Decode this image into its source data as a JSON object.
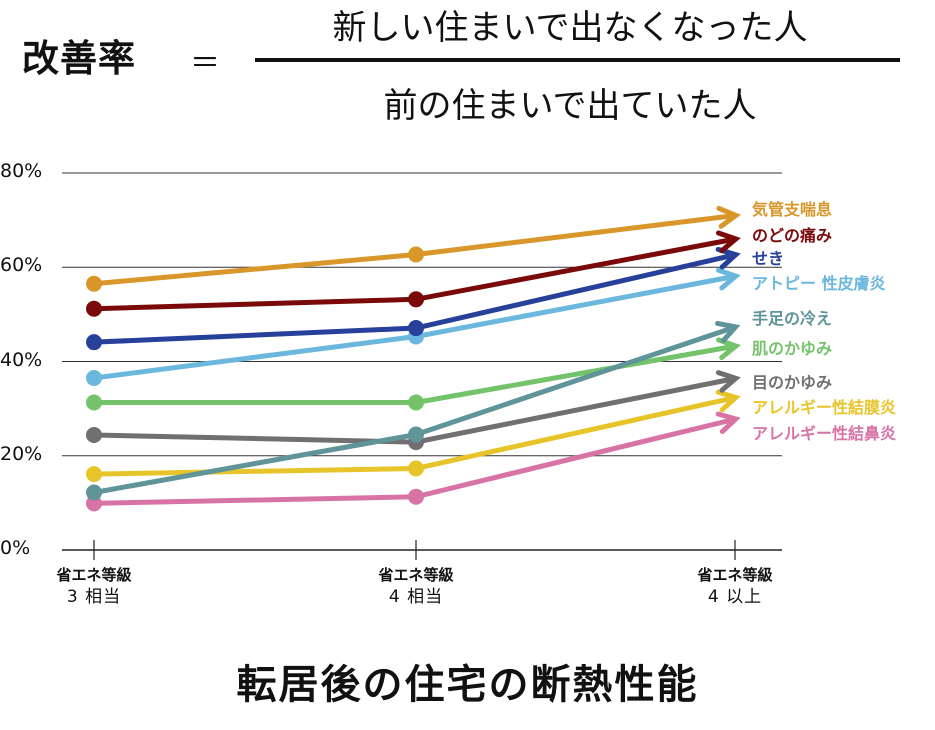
{
  "formula": {
    "lhs": "改善率",
    "equals": "＝",
    "numerator": "新しい住まいで出なくなった人",
    "denominator": "前の住まいで出ていた人"
  },
  "chart_data": {
    "type": "line",
    "title": "",
    "xlabel": "転居後の住宅の断熱性能",
    "ylabel": "",
    "ylim": [
      0,
      80
    ],
    "yticks": [
      "0%",
      "20%",
      "40%",
      "60%",
      "80%"
    ],
    "ytick_values": [
      0,
      20,
      40,
      60,
      80
    ],
    "grid": true,
    "legend": "right-end labels",
    "categories": [
      {
        "line1": "省エネ等級",
        "line2": "3 相当"
      },
      {
        "line1": "省エネ等級",
        "line2": "4 相当"
      },
      {
        "line1": "省エネ等級",
        "line2": "4 以上"
      }
    ],
    "series": [
      {
        "name": "気管支喘息",
        "color": "#d9962a",
        "values": [
          56.5,
          62.7,
          70.8
        ]
      },
      {
        "name": "のどの痛み",
        "color": "#7a0a0a",
        "values": [
          51.2,
          53.2,
          65.7
        ]
      },
      {
        "name": "せき",
        "color": "#27409a",
        "values": [
          44.1,
          47.1,
          62.3
        ]
      },
      {
        "name": "アトピー 性皮膚炎",
        "color": "#6bb7de",
        "values": [
          36.5,
          45.3,
          57.8
        ]
      },
      {
        "name": "手足の冷え",
        "color": "#5f9498",
        "values": [
          12.2,
          24.5,
          46.8
        ]
      },
      {
        "name": "肌のかゆみ",
        "color": "#74c36b",
        "values": [
          31.3,
          31.3,
          43.0
        ]
      },
      {
        "name": "目のかゆみ",
        "color": "#707070",
        "values": [
          24.4,
          22.9,
          36.1
        ]
      },
      {
        "name": "アレルギー性結膜炎",
        "color": "#e7c52a",
        "values": [
          16.1,
          17.3,
          32.0
        ]
      },
      {
        "name": "アレルギー性結鼻炎",
        "color": "#d873a6",
        "values": [
          9.9,
          11.3,
          27.4
        ]
      }
    ]
  }
}
